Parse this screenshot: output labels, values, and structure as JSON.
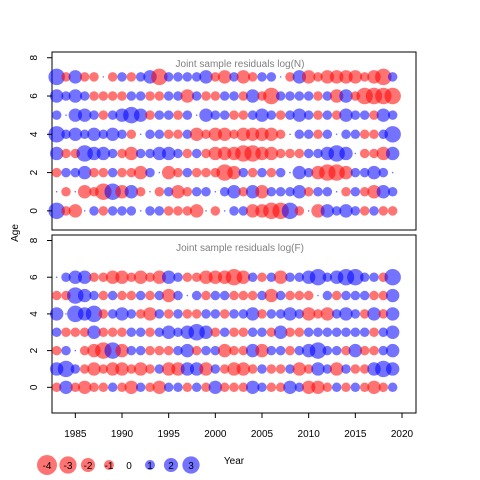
{
  "colors": {
    "negative": "#ff0000",
    "positive": "#0000ff",
    "frame": "#000000",
    "title_gray": "#808080"
  },
  "chart_data": [
    {
      "type": "bubble-residuals",
      "title": "Joint sample residuals log(N)",
      "xlabel": "Year",
      "ylabel": "Age",
      "xlim": [
        1982.5,
        2021.5
      ],
      "ylim": [
        -1,
        8.3
      ],
      "yticks": [
        0,
        2,
        4,
        6,
        8
      ],
      "years": [
        1983,
        1984,
        1985,
        1986,
        1987,
        1988,
        1989,
        1990,
        1991,
        1992,
        1993,
        1994,
        1995,
        1996,
        1997,
        1998,
        1999,
        2000,
        2001,
        2002,
        2003,
        2004,
        2005,
        2006,
        2007,
        2008,
        2009,
        2010,
        2011,
        2012,
        2013,
        2014,
        2015,
        2016,
        2017,
        2018,
        2019
      ],
      "ages": [
        0,
        1,
        2,
        3,
        4,
        5,
        6,
        7
      ],
      "residuals": [
        [
          3,
          -1,
          -2,
          0,
          1,
          -1,
          1,
          1,
          1,
          0,
          1,
          1,
          -1,
          -1,
          -1,
          -2,
          0,
          -1,
          0,
          1,
          1,
          -2,
          -2,
          -3,
          -3,
          3,
          -1,
          0,
          -2,
          2,
          1,
          2,
          1,
          -1,
          1,
          -1,
          -1
        ],
        [
          0,
          -1,
          0,
          -2,
          -1,
          -3,
          3,
          -2,
          2,
          -1,
          0,
          -1,
          1,
          -2,
          -1,
          1,
          1,
          0,
          1,
          2,
          -1,
          2,
          -2,
          1,
          1,
          1,
          2,
          -1,
          1,
          1,
          0,
          -1,
          1,
          -1,
          -2,
          2,
          1
        ],
        [
          -1,
          1,
          1,
          2,
          -1,
          -1,
          1,
          -1,
          -1,
          -2,
          1,
          0,
          -2,
          -1,
          1,
          -1,
          -1,
          -1,
          -3,
          -2,
          1,
          -1,
          1,
          -1,
          1,
          0,
          2,
          1,
          -2,
          -3,
          -3,
          -2,
          1,
          1,
          2,
          1,
          0
        ],
        [
          2,
          -1,
          -1,
          3,
          2,
          2,
          1,
          -1,
          -2,
          1,
          1,
          2,
          2,
          1,
          -1,
          1,
          -1,
          -2,
          -2,
          -2,
          -3,
          -3,
          -2,
          -2,
          -1,
          -1,
          -1,
          1,
          1,
          2,
          3,
          2,
          0,
          -1,
          -1,
          -2,
          2
        ],
        [
          3,
          1,
          2,
          1,
          2,
          1,
          2,
          1,
          -1,
          0,
          1,
          1,
          -1,
          -1,
          1,
          -2,
          -1,
          -2,
          -2,
          -1,
          -2,
          -2,
          -2,
          -2,
          -1,
          0,
          1,
          1,
          -1,
          1,
          0,
          1,
          1,
          -1,
          -1,
          1,
          3
        ],
        [
          1,
          0,
          2,
          2,
          1,
          -1,
          1,
          2,
          3,
          2,
          -1,
          1,
          1,
          -1,
          1,
          0,
          2,
          1,
          1,
          -1,
          -1,
          1,
          2,
          1,
          -1,
          1,
          2,
          1,
          -1,
          1,
          -1,
          2,
          1,
          1,
          -1,
          2,
          1
        ],
        [
          2,
          1,
          2,
          1,
          -1,
          -1,
          -1,
          -1,
          1,
          1,
          -1,
          -1,
          1,
          1,
          -2,
          1,
          -1,
          -1,
          1,
          1,
          -1,
          2,
          -1,
          -3,
          1,
          1,
          1,
          1,
          -1,
          1,
          -2,
          2,
          -1,
          -3,
          -3,
          -3,
          -3
        ],
        [
          3,
          -1,
          2,
          -1,
          -1,
          0,
          -1,
          1,
          -1,
          1,
          2,
          -3,
          1,
          1,
          1,
          1,
          2,
          -1,
          -2,
          1,
          -2,
          -1,
          1,
          1,
          0,
          -1,
          2,
          -2,
          -1,
          -2,
          -2,
          -2,
          -2,
          -1,
          -2,
          -3,
          1
        ]
      ]
    },
    {
      "type": "bubble-residuals",
      "title": "Joint sample residuals log(F)",
      "xlabel": "Year",
      "ylabel": "Age",
      "xlim": [
        1982.5,
        2021.5
      ],
      "ylim": [
        -1.4,
        8.3
      ],
      "yticks": [
        0,
        2,
        4,
        6,
        8
      ],
      "xticks": [
        1985,
        1990,
        1995,
        2000,
        2005,
        2010,
        2015,
        2020
      ],
      "years": [
        1983,
        1984,
        1985,
        1986,
        1987,
        1988,
        1989,
        1990,
        1991,
        1992,
        1993,
        1994,
        1995,
        1996,
        1997,
        1998,
        1999,
        2000,
        2001,
        2002,
        2003,
        2004,
        2005,
        2006,
        2007,
        2008,
        2009,
        2010,
        2011,
        2012,
        2013,
        2014,
        2015,
        2016,
        2017,
        2018,
        2019
      ],
      "ages": [
        0,
        1,
        2,
        3,
        4,
        5,
        6
      ],
      "residuals": [
        [
          -1,
          2,
          -1,
          -2,
          -1,
          -1,
          1,
          -1,
          -2,
          1,
          -1,
          -2,
          1,
          1,
          -1,
          1,
          -1,
          2,
          -1,
          -1,
          -1,
          2,
          1,
          -1,
          -1,
          2,
          1,
          -2,
          -2,
          -1,
          1,
          -1,
          1,
          -1,
          -2,
          -1,
          1
        ],
        [
          2,
          3,
          1,
          -1,
          -2,
          -1,
          -2,
          -2,
          -1,
          -2,
          -1,
          1,
          -2,
          -2,
          2,
          2,
          -2,
          1,
          -1,
          -2,
          -2,
          -1,
          1,
          -1,
          -1,
          1,
          -2,
          -1,
          2,
          1,
          -2,
          1,
          -1,
          -1,
          2,
          3,
          2
        ],
        [
          -1,
          1,
          0,
          -1,
          -2,
          -3,
          3,
          -2,
          1,
          1,
          -1,
          -1,
          -1,
          1,
          2,
          -1,
          1,
          1,
          -2,
          -1,
          -1,
          2,
          -2,
          1,
          1,
          -1,
          1,
          2,
          3,
          1,
          1,
          -1,
          2,
          -1,
          -1,
          1,
          2
        ],
        [
          1,
          -1,
          -1,
          -1,
          2,
          -1,
          -1,
          -1,
          1,
          1,
          -1,
          1,
          2,
          1,
          2,
          3,
          2,
          -1,
          1,
          -1,
          -1,
          1,
          1,
          -1,
          2,
          -1,
          -1,
          1,
          1,
          1,
          1,
          1,
          1,
          1,
          -1,
          1,
          2
        ],
        [
          2,
          0,
          3,
          2,
          3,
          -1,
          1,
          2,
          1,
          -1,
          -2,
          1,
          -1,
          1,
          -1,
          -1,
          1,
          1,
          -1,
          1,
          1,
          2,
          -1,
          1,
          1,
          2,
          1,
          -2,
          -1,
          -2,
          1,
          2,
          1,
          -1,
          2,
          -1,
          2
        ],
        [
          -1,
          -1,
          3,
          2,
          1,
          -1,
          1,
          -1,
          -1,
          1,
          -1,
          1,
          -2,
          1,
          0,
          1,
          -1,
          1,
          1,
          -1,
          -1,
          -1,
          1,
          -2,
          1,
          -1,
          -1,
          -1,
          0,
          1,
          -1,
          1,
          1,
          1,
          -1,
          -1,
          2
        ],
        [
          0,
          1,
          2,
          2,
          -1,
          -1,
          -2,
          -2,
          -1,
          -2,
          -1,
          -2,
          2,
          1,
          -1,
          -1,
          -2,
          -2,
          -2,
          -3,
          -2,
          1,
          -1,
          1,
          -2,
          1,
          1,
          2,
          3,
          1,
          2,
          3,
          3,
          1,
          1,
          -1,
          3
        ]
      ]
    }
  ],
  "legend": {
    "values": [
      -4,
      -3,
      -2,
      -1,
      0,
      1,
      2,
      3
    ],
    "labels": [
      "-4",
      "-3",
      "-2",
      "-1",
      "0",
      "1",
      "2",
      "3"
    ]
  }
}
